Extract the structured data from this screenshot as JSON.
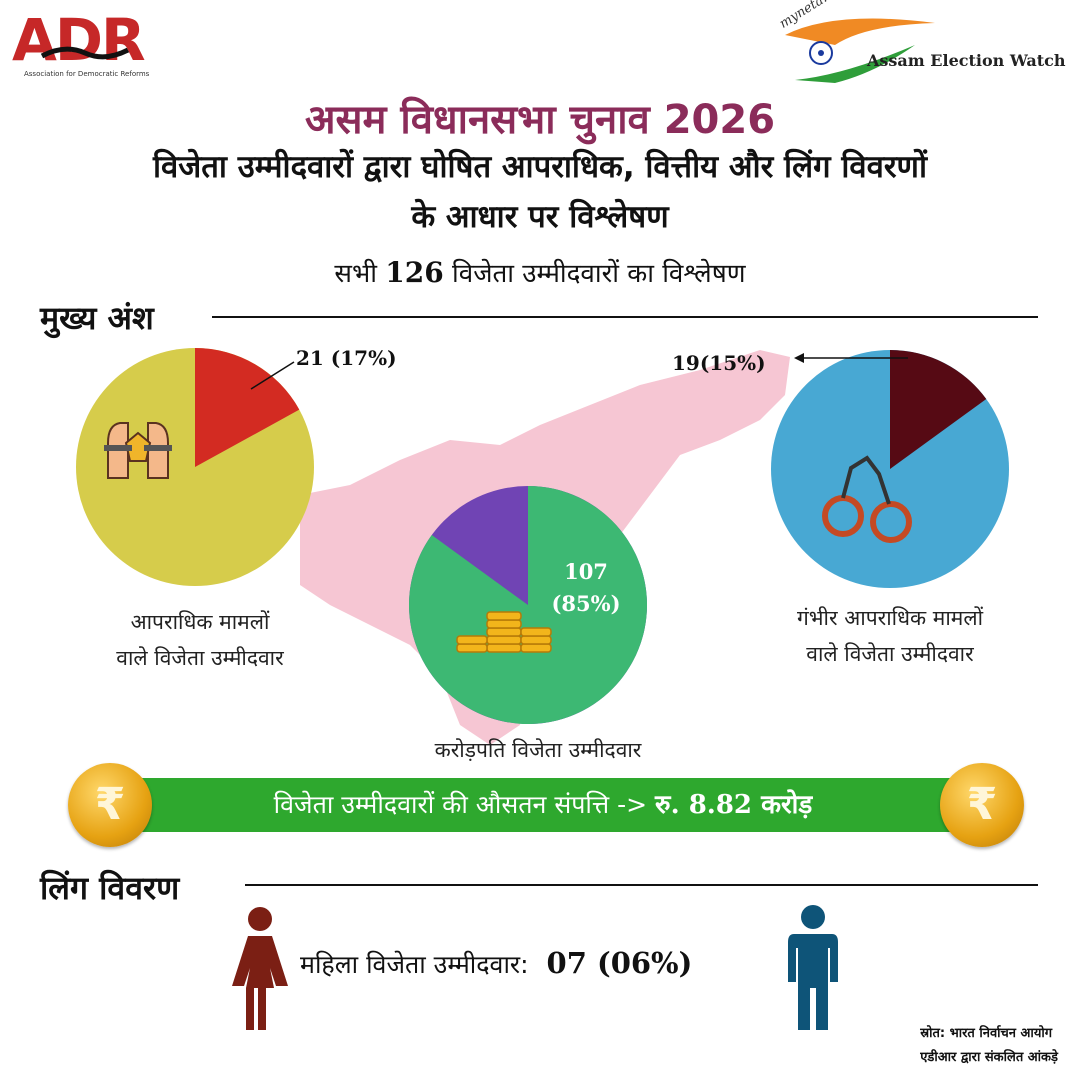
{
  "logos": {
    "adr": "ADR",
    "adr_sub": "Association for Democratic Reforms",
    "myneta": "myneta.info",
    "assam_watch": "Assam Election Watch"
  },
  "header": {
    "title": "असम विधानसभा चुनाव 2026",
    "subtitle_line1": "विजेता उम्मीदवारों द्वारा घोषित आपराधिक, वित्तीय और लिंग विवरणों",
    "subtitle_line2": "के आधार पर विश्लेषण",
    "analysis_prefix": "सभी",
    "analysis_count": "126",
    "analysis_suffix": "विजेता उम्मीदवारों का विश्लेषण"
  },
  "highlights": {
    "heading": "मुख्य अंश",
    "criminal": {
      "value_label": "21 (17%)",
      "fraction": 0.17,
      "caption_line1": "आपराधिक मामलों",
      "caption_line2": "वाले विजेता उम्मीदवार",
      "colors": {
        "slice": "#d32b22",
        "rest": "#d6cc4b"
      }
    },
    "crorepati": {
      "value_line1": "107",
      "value_line2": "(85%)",
      "fraction": 0.85,
      "caption": "करोड़पति विजेता उम्मीदवार",
      "colors": {
        "slice": "#3db873",
        "rest": "#7044b4"
      }
    },
    "serious": {
      "value_label": "19(15%)",
      "fraction": 0.15,
      "caption_line1": "गंभीर आपराधिक मामलों",
      "caption_line2": "वाले विजेता उम्मीदवार",
      "colors": {
        "slice": "#560a14",
        "rest": "#48a8d3"
      }
    }
  },
  "assets": {
    "text": "विजेता उम्मीदवारों की औसतन संपत्ति ->",
    "value": "रु. 8.82 करोड़",
    "coin_symbol": "₹",
    "color": "#2ea82e"
  },
  "gender": {
    "heading": "लिंग विवरण",
    "women_label": "महिला विजेता उम्मीदवार:",
    "women_value": "07 (06%)",
    "colors": {
      "female": "#7b1f14",
      "male": "#0e5478"
    }
  },
  "source": {
    "line1": "स्रोत: भारत निर्वाचन आयोग",
    "line2": "एडीआर द्वारा संकलित आंकड़े"
  }
}
